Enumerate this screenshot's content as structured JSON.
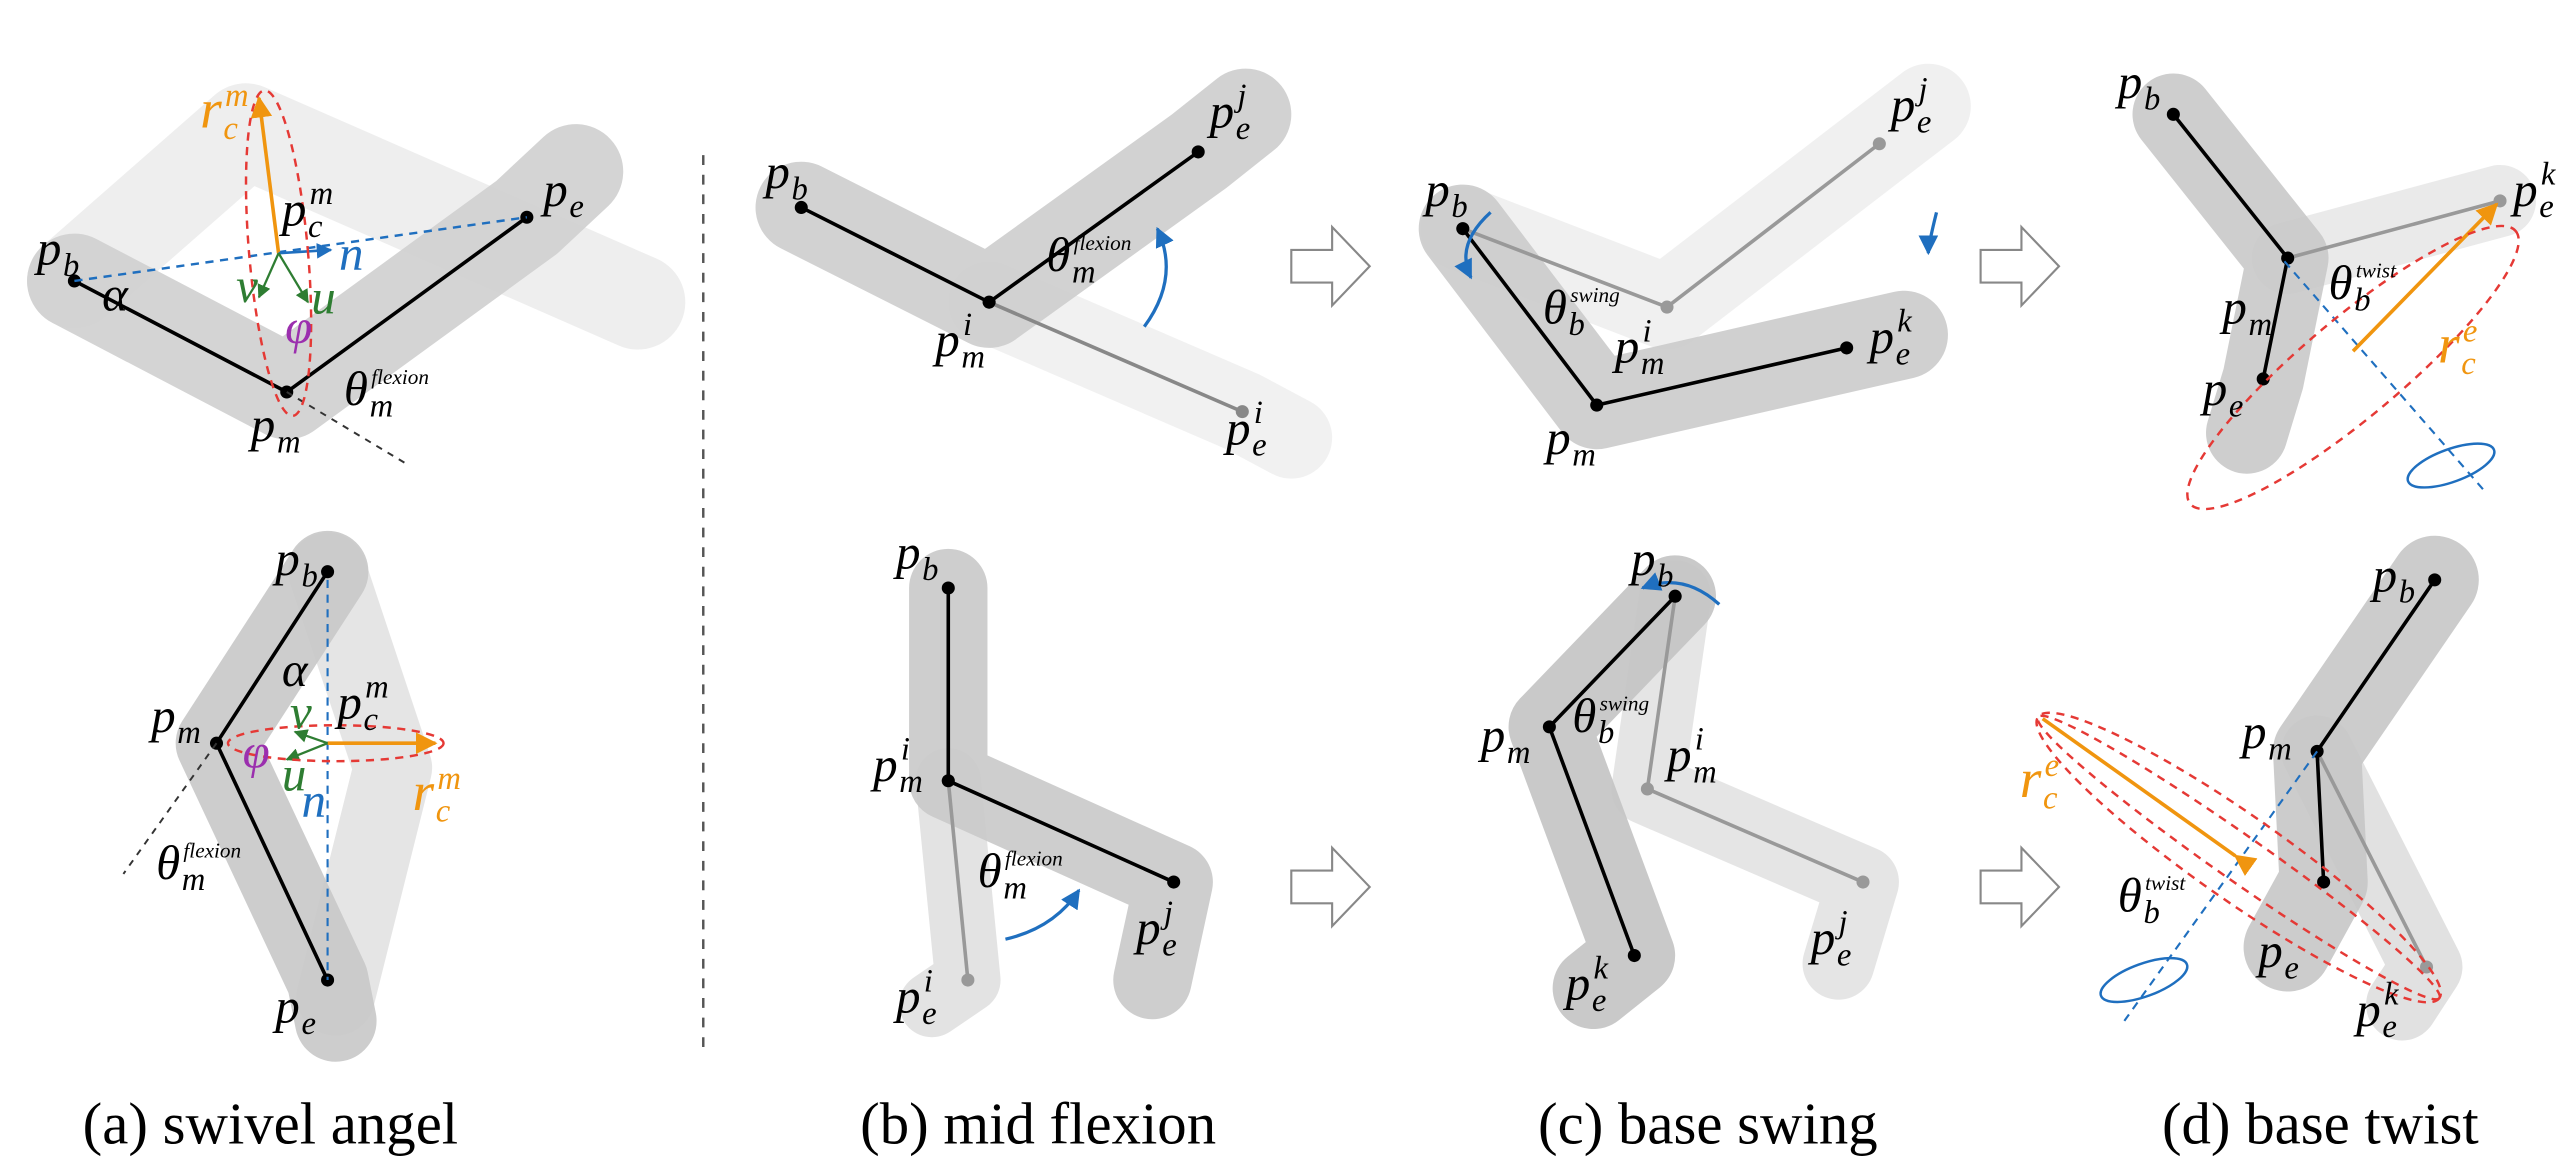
{
  "captions": [
    "(a) swivel angel",
    "(b) mid flexion",
    "(c) base swing",
    "(d) base twist"
  ],
  "labels": [
    {
      "base": "r",
      "sub": "c",
      "sup": "m"
    },
    {
      "base": "p",
      "sub": "c",
      "sup": "m"
    },
    {
      "base": "p",
      "sub": "b"
    },
    {
      "base": "p",
      "sub": "e"
    },
    {
      "base": "α"
    },
    {
      "base": "n"
    },
    {
      "base": "v"
    },
    {
      "base": "u"
    },
    {
      "base": "φ"
    },
    {
      "base": "θ",
      "sub": "m",
      "sup": "flexion"
    },
    {
      "base": "p",
      "sub": "m"
    },
    {
      "base": "p",
      "sub": "b"
    },
    {
      "base": "α"
    },
    {
      "base": "p",
      "sub": "c",
      "sup": "m"
    },
    {
      "base": "p",
      "sub": "m"
    },
    {
      "base": "v"
    },
    {
      "base": "φ"
    },
    {
      "base": "u"
    },
    {
      "base": "n"
    },
    {
      "base": "r",
      "sub": "c",
      "sup": "m"
    },
    {
      "base": "θ",
      "sub": "m",
      "sup": "flexion"
    },
    {
      "base": "p",
      "sub": "e"
    },
    {
      "base": "p",
      "sub": "b"
    },
    {
      "base": "p",
      "sub": "e",
      "sup": "j"
    },
    {
      "base": "θ",
      "sub": "m",
      "sup": "flexion"
    },
    {
      "base": "p",
      "sub": "m",
      "sup": "i"
    },
    {
      "base": "p",
      "sub": "e",
      "sup": "i"
    },
    {
      "base": "p",
      "sub": "b"
    },
    {
      "base": "p",
      "sub": "m",
      "sup": "i"
    },
    {
      "base": "θ",
      "sub": "m",
      "sup": "flexion"
    },
    {
      "base": "p",
      "sub": "e",
      "sup": "j"
    },
    {
      "base": "p",
      "sub": "e",
      "sup": "i"
    },
    {
      "base": "p",
      "sub": "e",
      "sup": "j"
    },
    {
      "base": "p",
      "sub": "b"
    },
    {
      "base": "θ",
      "sub": "b",
      "sup": "swing"
    },
    {
      "base": "p",
      "sub": "m",
      "sup": "i"
    },
    {
      "base": "p",
      "sub": "e",
      "sup": "k"
    },
    {
      "base": "p",
      "sub": "m"
    },
    {
      "base": "p",
      "sub": "b"
    },
    {
      "base": "θ",
      "sub": "b",
      "sup": "swing"
    },
    {
      "base": "p",
      "sub": "m"
    },
    {
      "base": "p",
      "sub": "m",
      "sup": "i"
    },
    {
      "base": "p",
      "sub": "e",
      "sup": "j"
    },
    {
      "base": "p",
      "sub": "e",
      "sup": "k"
    },
    {
      "base": "p",
      "sub": "b"
    },
    {
      "base": "p",
      "sub": "e",
      "sup": "k"
    },
    {
      "base": "p",
      "sub": "m"
    },
    {
      "base": "θ",
      "sub": "b",
      "sup": "twist"
    },
    {
      "base": "r",
      "sub": "c",
      "sup": "e"
    },
    {
      "base": "p",
      "sub": "e"
    },
    {
      "base": "p",
      "sub": "b"
    },
    {
      "base": "p",
      "sub": "m"
    },
    {
      "base": "r",
      "sub": "c",
      "sup": "e"
    },
    {
      "base": "θ",
      "sub": "b",
      "sup": "twist"
    },
    {
      "base": "p",
      "sub": "e"
    },
    {
      "base": "p",
      "sub": "e",
      "sup": "k"
    }
  ]
}
